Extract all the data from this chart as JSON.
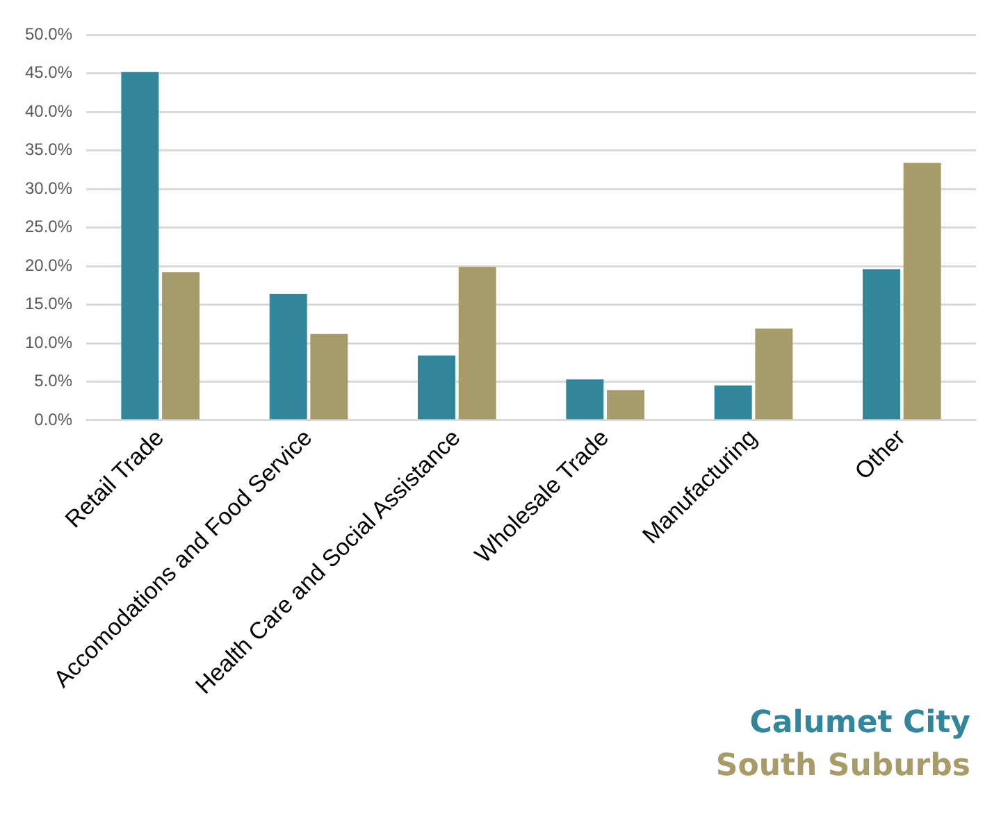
{
  "chart_data": {
    "type": "bar",
    "categories": [
      "Retail Trade",
      "Accomodations and Food Service",
      "Health Care and Social Assistance",
      "Wholesale Trade",
      "Manufacturing",
      "Other"
    ],
    "series": [
      {
        "name": "Calumet City",
        "color": "#31869b",
        "values": [
          45.2,
          16.4,
          8.4,
          5.3,
          4.5,
          19.6
        ]
      },
      {
        "name": "South Suburbs",
        "color": "#a79b69",
        "values": [
          19.2,
          11.2,
          19.9,
          3.9,
          11.9,
          33.4
        ]
      }
    ],
    "ylim": [
      0,
      50
    ],
    "yticks": [
      {
        "value": 0,
        "label": "0.0%"
      },
      {
        "value": 5,
        "label": "5.0%"
      },
      {
        "value": 10,
        "label": "10.0%"
      },
      {
        "value": 15,
        "label": "15.0%"
      },
      {
        "value": 20,
        "label": "20.0%"
      },
      {
        "value": 25,
        "label": "25.0%"
      },
      {
        "value": 30,
        "label": "30.0%"
      },
      {
        "value": 35,
        "label": "35.0%"
      },
      {
        "value": 40,
        "label": "40.0%"
      },
      {
        "value": 45,
        "label": "45.0%"
      },
      {
        "value": 50,
        "label": "50.0%"
      }
    ],
    "grid": "y",
    "legend": "bottom right"
  }
}
